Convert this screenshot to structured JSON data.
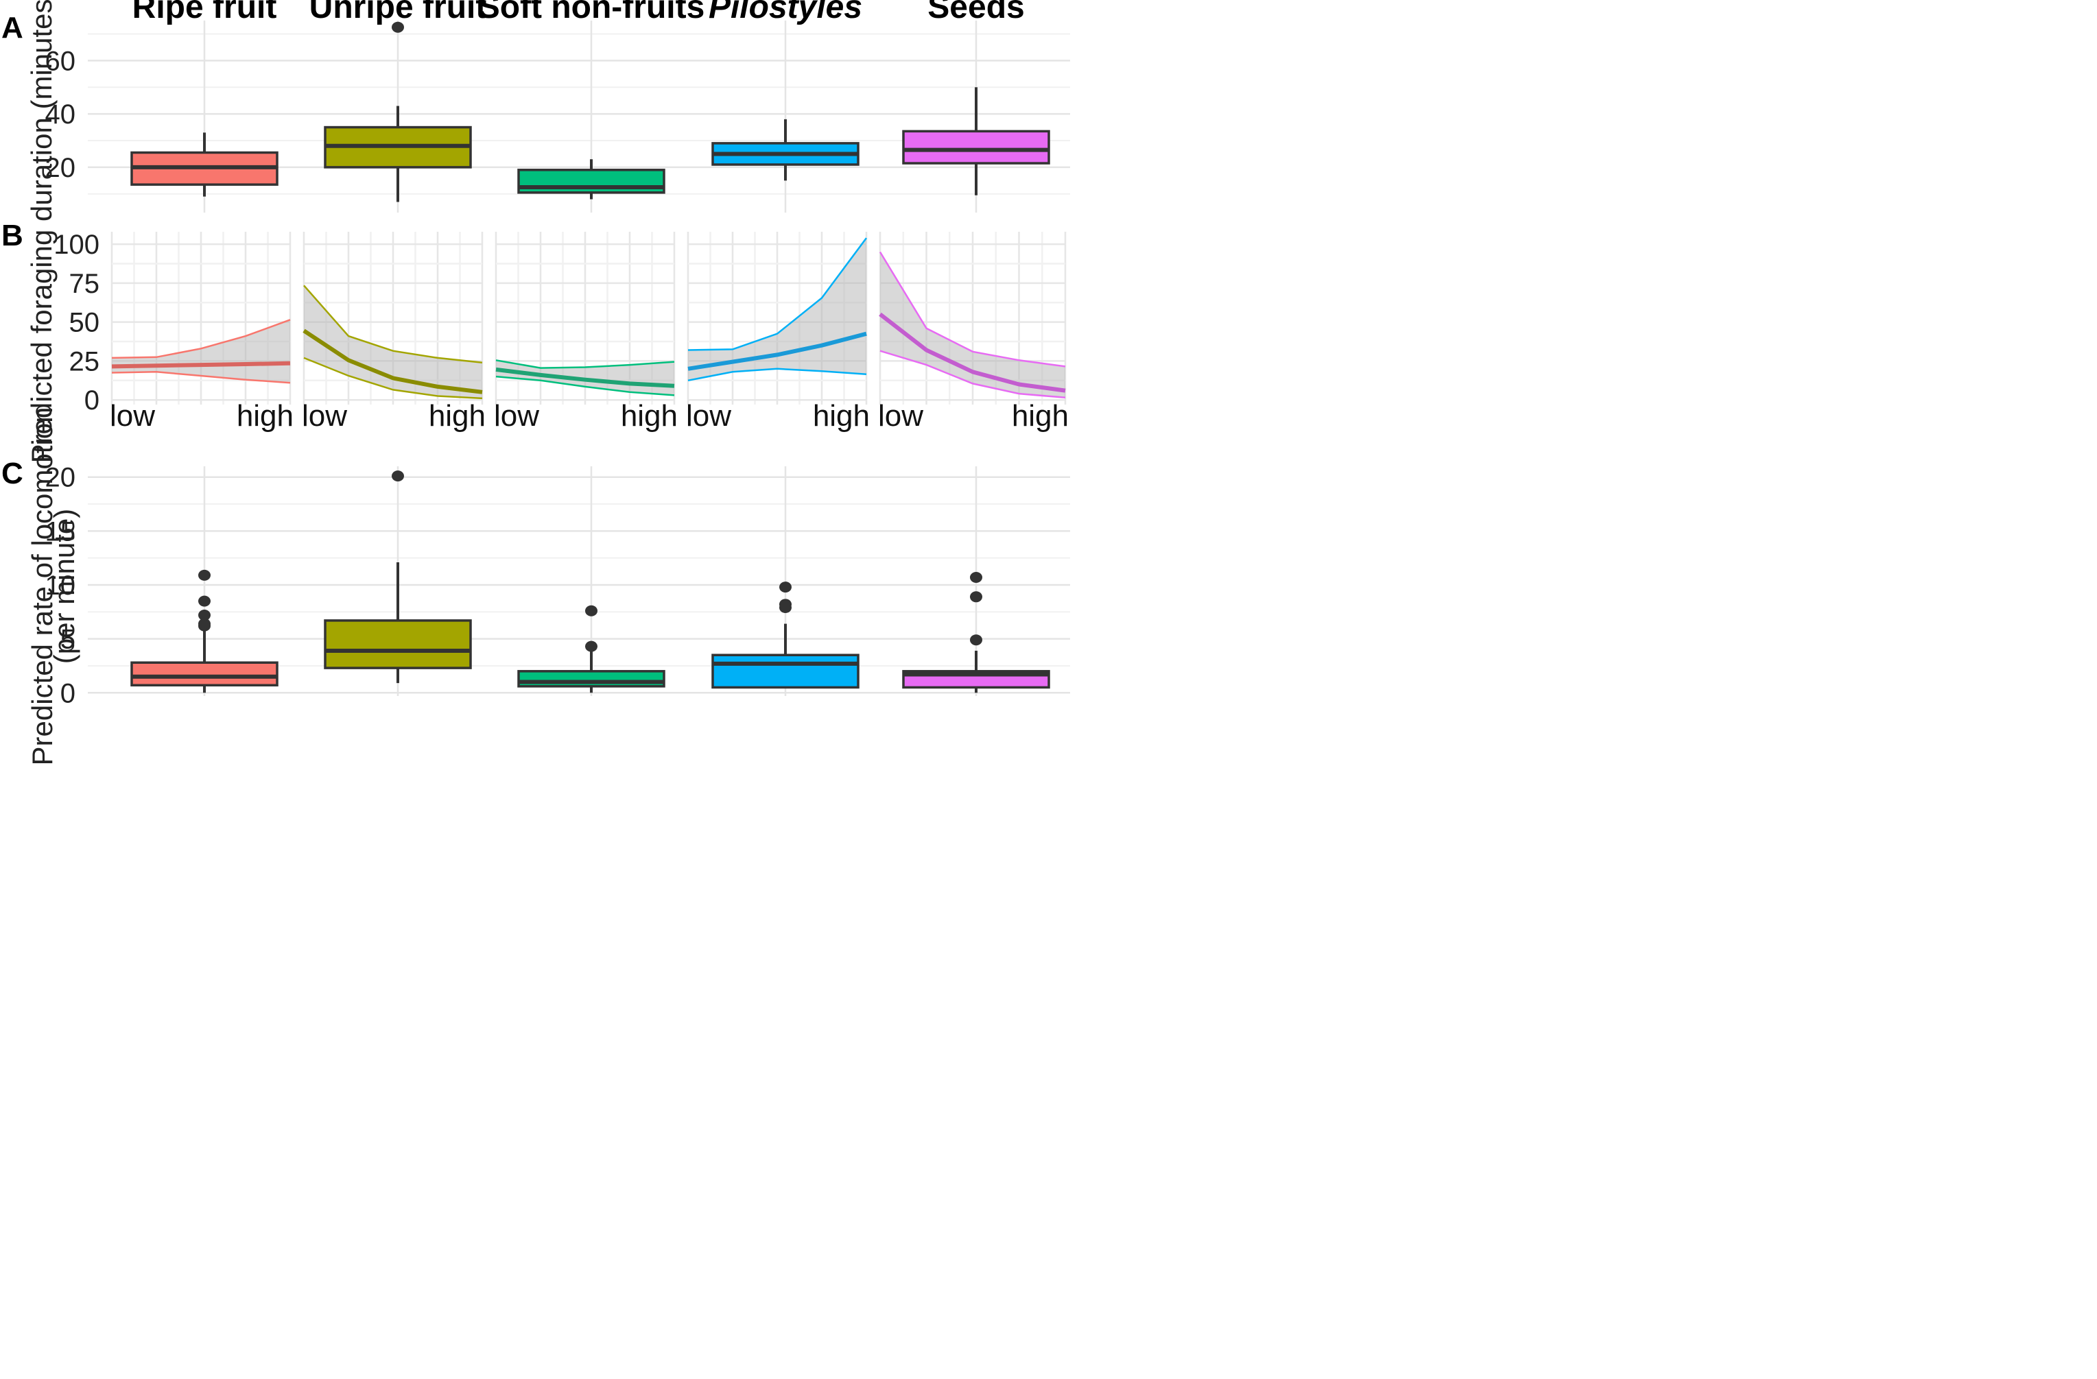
{
  "chart_data": {
    "type": "multi-panel",
    "categories": [
      "Ripe fruit",
      "Unripe fruit",
      "Soft non-fruits",
      "Pilostyles",
      "Seeds"
    ],
    "italic_categories": [
      "Pilostyles"
    ],
    "colors": [
      "#F8766D",
      "#A3A500",
      "#00BF7D",
      "#00B0F6",
      "#E76BF3"
    ],
    "line_colors": [
      "#D96560",
      "#8A8C00",
      "#1FA374",
      "#1A9AD8",
      "#C35DCF"
    ],
    "panels": [
      {
        "id": "A",
        "label": "A",
        "type": "box",
        "ylabel": "Predicted foraging duration (minutes)",
        "ylim": [
          3,
          75
        ],
        "yticks": [
          20,
          40,
          60
        ],
        "grid": true,
        "boxes": [
          {
            "category": "Ripe fruit",
            "whisker_low": 9,
            "q1": 13.5,
            "median": 20,
            "q3": 25.5,
            "whisker_high": 33,
            "outliers": []
          },
          {
            "category": "Unripe fruit",
            "whisker_low": 7,
            "q1": 20,
            "median": 28,
            "q3": 35,
            "whisker_high": 43,
            "outliers": [
              72.5
            ]
          },
          {
            "category": "Soft non-fruits",
            "whisker_low": 8,
            "q1": 10.5,
            "median": 12.5,
            "q3": 19,
            "whisker_high": 23,
            "outliers": []
          },
          {
            "category": "Pilostyles",
            "whisker_low": 15,
            "q1": 21,
            "median": 25,
            "q3": 29,
            "whisker_high": 38,
            "outliers": []
          },
          {
            "category": "Seeds",
            "whisker_low": 9.5,
            "q1": 21.5,
            "median": 26.5,
            "q3": 33.5,
            "whisker_high": 50,
            "outliers": []
          }
        ]
      },
      {
        "id": "B",
        "label": "B",
        "type": "line-ribbon",
        "ylabel": "Predicted foraging duration (minutes)",
        "ylim": [
          -3,
          108
        ],
        "yticks": [
          0,
          25,
          50,
          75,
          100
        ],
        "x_low_label": "low",
        "x_high_label": "high",
        "grid": true,
        "series": [
          {
            "category": "Ripe fruit",
            "x": [
              0,
              0.25,
              0.5,
              0.75,
              1
            ],
            "fit": [
              21.5,
              22,
              22.5,
              23,
              23.5
            ],
            "lower": [
              17.5,
              18,
              15.5,
              13,
              11
            ],
            "upper": [
              27,
              27.5,
              33,
              41,
              51.5
            ]
          },
          {
            "category": "Unripe fruit",
            "x": [
              0,
              0.25,
              0.5,
              0.75,
              1
            ],
            "fit": [
              44.5,
              25.5,
              14,
              8.5,
              5
            ],
            "lower": [
              27,
              15.5,
              6.5,
              2.5,
              1
            ],
            "upper": [
              73.5,
              41,
              31.5,
              27,
              24
            ]
          },
          {
            "category": "Soft non-fruits",
            "x": [
              0,
              0.25,
              0.5,
              0.75,
              1
            ],
            "fit": [
              19.5,
              16,
              13,
              10.5,
              9
            ],
            "lower": [
              15,
              12.5,
              8.5,
              5,
              3
            ],
            "upper": [
              25.5,
              20.5,
              21,
              22.5,
              24.5
            ]
          },
          {
            "category": "Pilostyles",
            "x": [
              0,
              0.25,
              0.5,
              0.75,
              1
            ],
            "fit": [
              20,
              24.5,
              29,
              35,
              42.5
            ],
            "lower": [
              12.5,
              18,
              20,
              18.5,
              16.5
            ],
            "upper": [
              32,
              32.5,
              42.5,
              65.5,
              104
            ]
          },
          {
            "category": "Seeds",
            "x": [
              0,
              0.25,
              0.5,
              0.75,
              1
            ],
            "fit": [
              55,
              32,
              18,
              10,
              6
            ],
            "lower": [
              31.5,
              22.5,
              10.5,
              4,
              1.5
            ],
            "upper": [
              95,
              46,
              31,
              25.5,
              21.5
            ]
          }
        ]
      },
      {
        "id": "C",
        "label": "C",
        "type": "box",
        "ylabel": "Predicted rate of locomotion",
        "ylabel2": "(per minute)",
        "ylim": [
          -0.3,
          21
        ],
        "yticks": [
          0,
          5,
          10,
          15,
          20
        ],
        "grid": true,
        "boxes": [
          {
            "category": "Ripe fruit",
            "whisker_low": 0,
            "q1": 0.7,
            "median": 1.5,
            "q3": 2.8,
            "whisker_high": 5.8,
            "outliers": [
              6.2,
              6.4,
              7.2,
              8.5,
              10.9
            ]
          },
          {
            "category": "Unripe fruit",
            "whisker_low": 0.9,
            "q1": 2.3,
            "median": 3.9,
            "q3": 6.7,
            "whisker_high": 12.1,
            "outliers": [
              20.1
            ]
          },
          {
            "category": "Soft non-fruits",
            "whisker_low": 0,
            "q1": 0.6,
            "median": 1.0,
            "q3": 2.0,
            "whisker_high": 4.3,
            "outliers": [
              4.3,
              7.6
            ]
          },
          {
            "category": "Pilostyles",
            "whisker_low": 0.5,
            "q1": 0.5,
            "median": 2.7,
            "q3": 3.5,
            "whisker_high": 6.4,
            "outliers": [
              7.9,
              8.2,
              9.8
            ]
          },
          {
            "category": "Seeds",
            "whisker_low": 0,
            "q1": 0.5,
            "median": 1.7,
            "q3": 2.0,
            "whisker_high": 3.9,
            "outliers": [
              4.9,
              8.9,
              10.7
            ]
          }
        ]
      }
    ]
  }
}
